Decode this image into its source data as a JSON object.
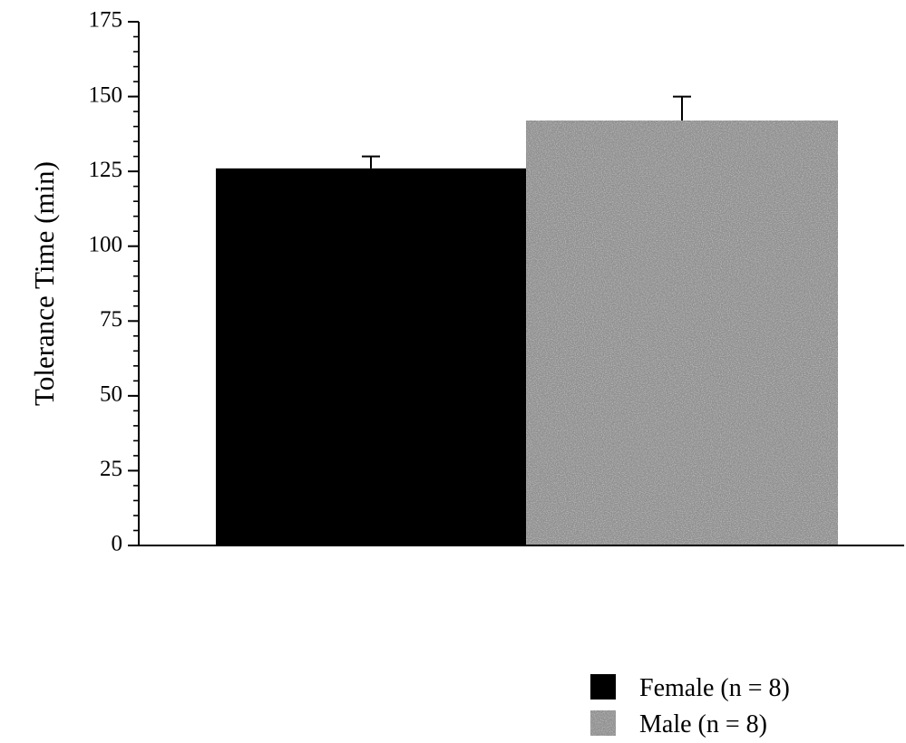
{
  "chart_data": {
    "type": "bar",
    "title": "",
    "xlabel": "",
    "ylabel": "Tolerance Time (min)",
    "ylim": [
      0,
      175
    ],
    "yticks": [
      0,
      25,
      50,
      75,
      100,
      125,
      150,
      175
    ],
    "grid": false,
    "legend_position": "bottom-right",
    "series": [
      {
        "name": "Female (n = 8)",
        "value": 126,
        "error": 4,
        "color": "#000000",
        "pattern": "solid"
      },
      {
        "name": "Male (n = 8)",
        "value": 142,
        "error": 8,
        "color": "#8f8f8f",
        "pattern": "stipple"
      }
    ]
  }
}
